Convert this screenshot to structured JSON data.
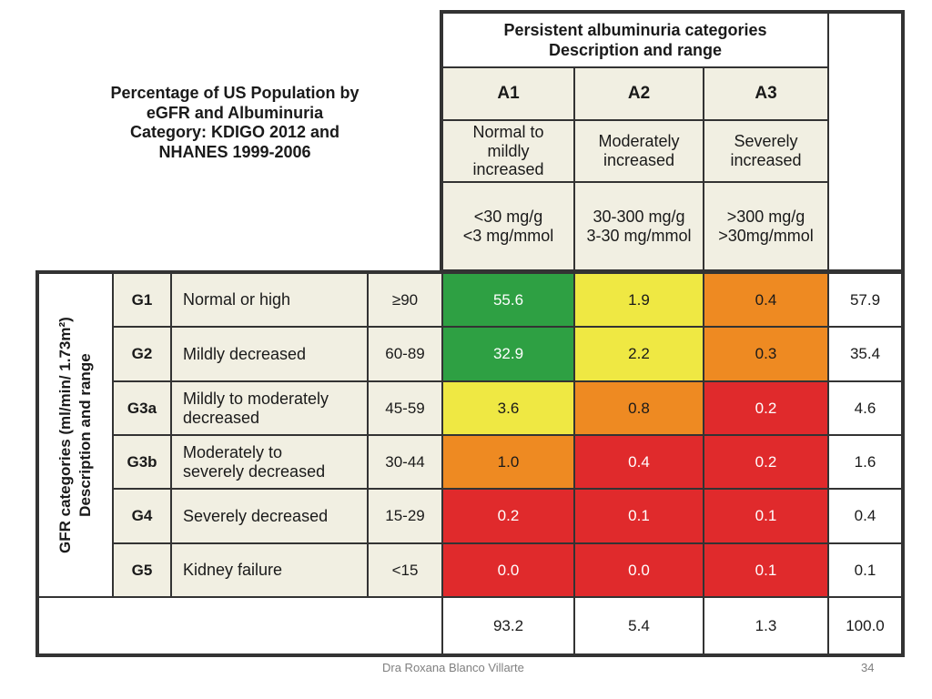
{
  "title_lines": [
    "Percentage of US Population by",
    "eGFR and Albuminuria",
    "Category: KDIGO 2012 and",
    "NHANES 1999-2006"
  ],
  "albuminuria_header": {
    "line1": "Persistent albuminuria categories",
    "line2": "Description and range"
  },
  "albuminuria_categories": [
    {
      "code": "A1",
      "desc_lines": [
        "Normal to",
        "mildly",
        "increased"
      ],
      "range_lines": [
        "<30 mg/g",
        "<3 mg/mmol"
      ]
    },
    {
      "code": "A2",
      "desc_lines": [
        "Moderately",
        "increased"
      ],
      "range_lines": [
        "30-300 mg/g",
        "3-30 mg/mmol"
      ]
    },
    {
      "code": "A3",
      "desc_lines": [
        "Severely",
        "increased"
      ],
      "range_lines": [
        ">300 mg/g",
        ">30mg/mmol"
      ]
    }
  ],
  "gfr_label": {
    "line1": "GFR categories (ml/min/ 1.73m²)",
    "line2": "Description and range"
  },
  "rows": [
    {
      "code": "G1",
      "desc_lines": [
        "Normal or high"
      ],
      "range": "≥90",
      "values": [
        "55.6",
        "1.9",
        "0.4"
      ],
      "total": "57.9"
    },
    {
      "code": "G2",
      "desc_lines": [
        "Mildly decreased"
      ],
      "range": "60-89",
      "values": [
        "32.9",
        "2.2",
        "0.3"
      ],
      "total": "35.4"
    },
    {
      "code": "G3a",
      "desc_lines": [
        "Mildly to moderately",
        "decreased"
      ],
      "range": "45-59",
      "values": [
        "3.6",
        "0.8",
        "0.2"
      ],
      "total": "4.6"
    },
    {
      "code": "G3b",
      "desc_lines": [
        "Moderately to",
        "severely decreased"
      ],
      "range": "30-44",
      "values": [
        "1.0",
        "0.4",
        "0.2"
      ],
      "total": "1.6"
    },
    {
      "code": "G4",
      "desc_lines": [
        "Severely decreased"
      ],
      "range": "15-29",
      "values": [
        "0.2",
        "0.1",
        "0.1"
      ],
      "total": "0.4"
    },
    {
      "code": "G5",
      "desc_lines": [
        "Kidney failure"
      ],
      "range": "<15",
      "values": [
        "0.0",
        "0.0",
        "0.1"
      ],
      "total": "0.1"
    }
  ],
  "risk_colors": [
    [
      "#2ea043",
      "#efe843",
      "#ee8a22"
    ],
    [
      "#2ea043",
      "#efe843",
      "#ee8a22"
    ],
    [
      "#efe843",
      "#ee8a22",
      "#e02a2c"
    ],
    [
      "#ee8a22",
      "#e02a2c",
      "#e02a2c"
    ],
    [
      "#e02a2c",
      "#e02a2c",
      "#e02a2c"
    ],
    [
      "#e02a2c",
      "#e02a2c",
      "#e02a2c"
    ]
  ],
  "column_totals": [
    "93.2",
    "5.4",
    "1.3"
  ],
  "grand_total": "100.0",
  "footer": {
    "author": "Dra Roxana Blanco Villarte",
    "page": "34"
  }
}
